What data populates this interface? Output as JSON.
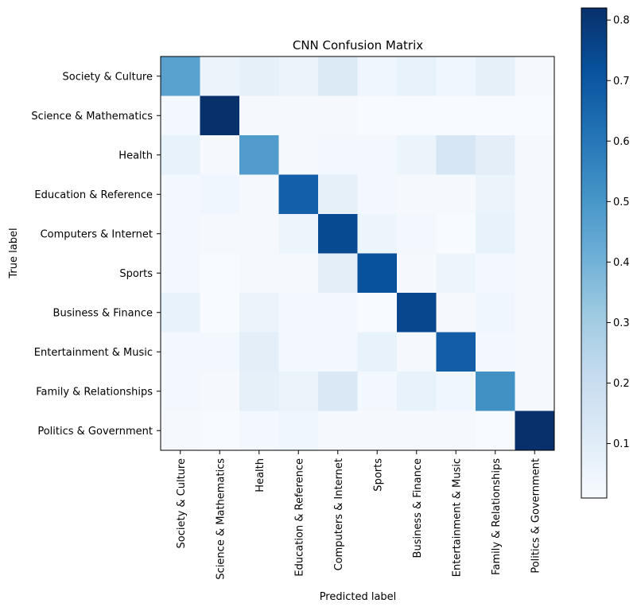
{
  "chart_data": {
    "type": "heatmap",
    "title": "CNN Confusion Matrix",
    "xlabel": "Predicted label",
    "ylabel": "True label",
    "x_categories": [
      "Society & Culture",
      "Science & Mathematics",
      "Health",
      "Education & Reference",
      "Computers & Internet",
      "Sports",
      "Business & Finance",
      "Entertainment & Music",
      "Family & Relationships",
      "Politics & Government"
    ],
    "y_categories": [
      "Society & Culture",
      "Science & Mathematics",
      "Health",
      "Education & Reference",
      "Computers & Internet",
      "Sports",
      "Business & Finance",
      "Entertainment & Music",
      "Family & Relationships",
      "Politics & Government"
    ],
    "values": [
      [
        0.46,
        0.06,
        0.08,
        0.06,
        0.12,
        0.04,
        0.07,
        0.04,
        0.08,
        0.02
      ],
      [
        0.03,
        0.82,
        0.02,
        0.02,
        0.02,
        0.01,
        0.01,
        0.01,
        0.01,
        0.01
      ],
      [
        0.07,
        0.02,
        0.48,
        0.02,
        0.03,
        0.03,
        0.06,
        0.14,
        0.09,
        0.02
      ],
      [
        0.03,
        0.04,
        0.02,
        0.67,
        0.08,
        0.03,
        0.02,
        0.02,
        0.06,
        0.02
      ],
      [
        0.03,
        0.02,
        0.02,
        0.05,
        0.74,
        0.05,
        0.03,
        0.01,
        0.07,
        0.02
      ],
      [
        0.03,
        0.01,
        0.02,
        0.02,
        0.09,
        0.72,
        0.02,
        0.05,
        0.03,
        0.02
      ],
      [
        0.07,
        0.01,
        0.06,
        0.03,
        0.03,
        0.01,
        0.75,
        0.02,
        0.04,
        0.02
      ],
      [
        0.03,
        0.03,
        0.09,
        0.03,
        0.03,
        0.07,
        0.02,
        0.68,
        0.03,
        0.02
      ],
      [
        0.03,
        0.02,
        0.08,
        0.06,
        0.13,
        0.03,
        0.07,
        0.04,
        0.52,
        0.02
      ],
      [
        0.02,
        0.01,
        0.03,
        0.04,
        0.02,
        0.02,
        0.02,
        0.02,
        0.01,
        0.82
      ]
    ],
    "colorbar": {
      "min": 0.01,
      "max": 0.82,
      "ticks": [
        0.1,
        0.2,
        0.3,
        0.4,
        0.5,
        0.6,
        0.7,
        0.8
      ]
    },
    "colormap": "Blues",
    "grid": false
  }
}
